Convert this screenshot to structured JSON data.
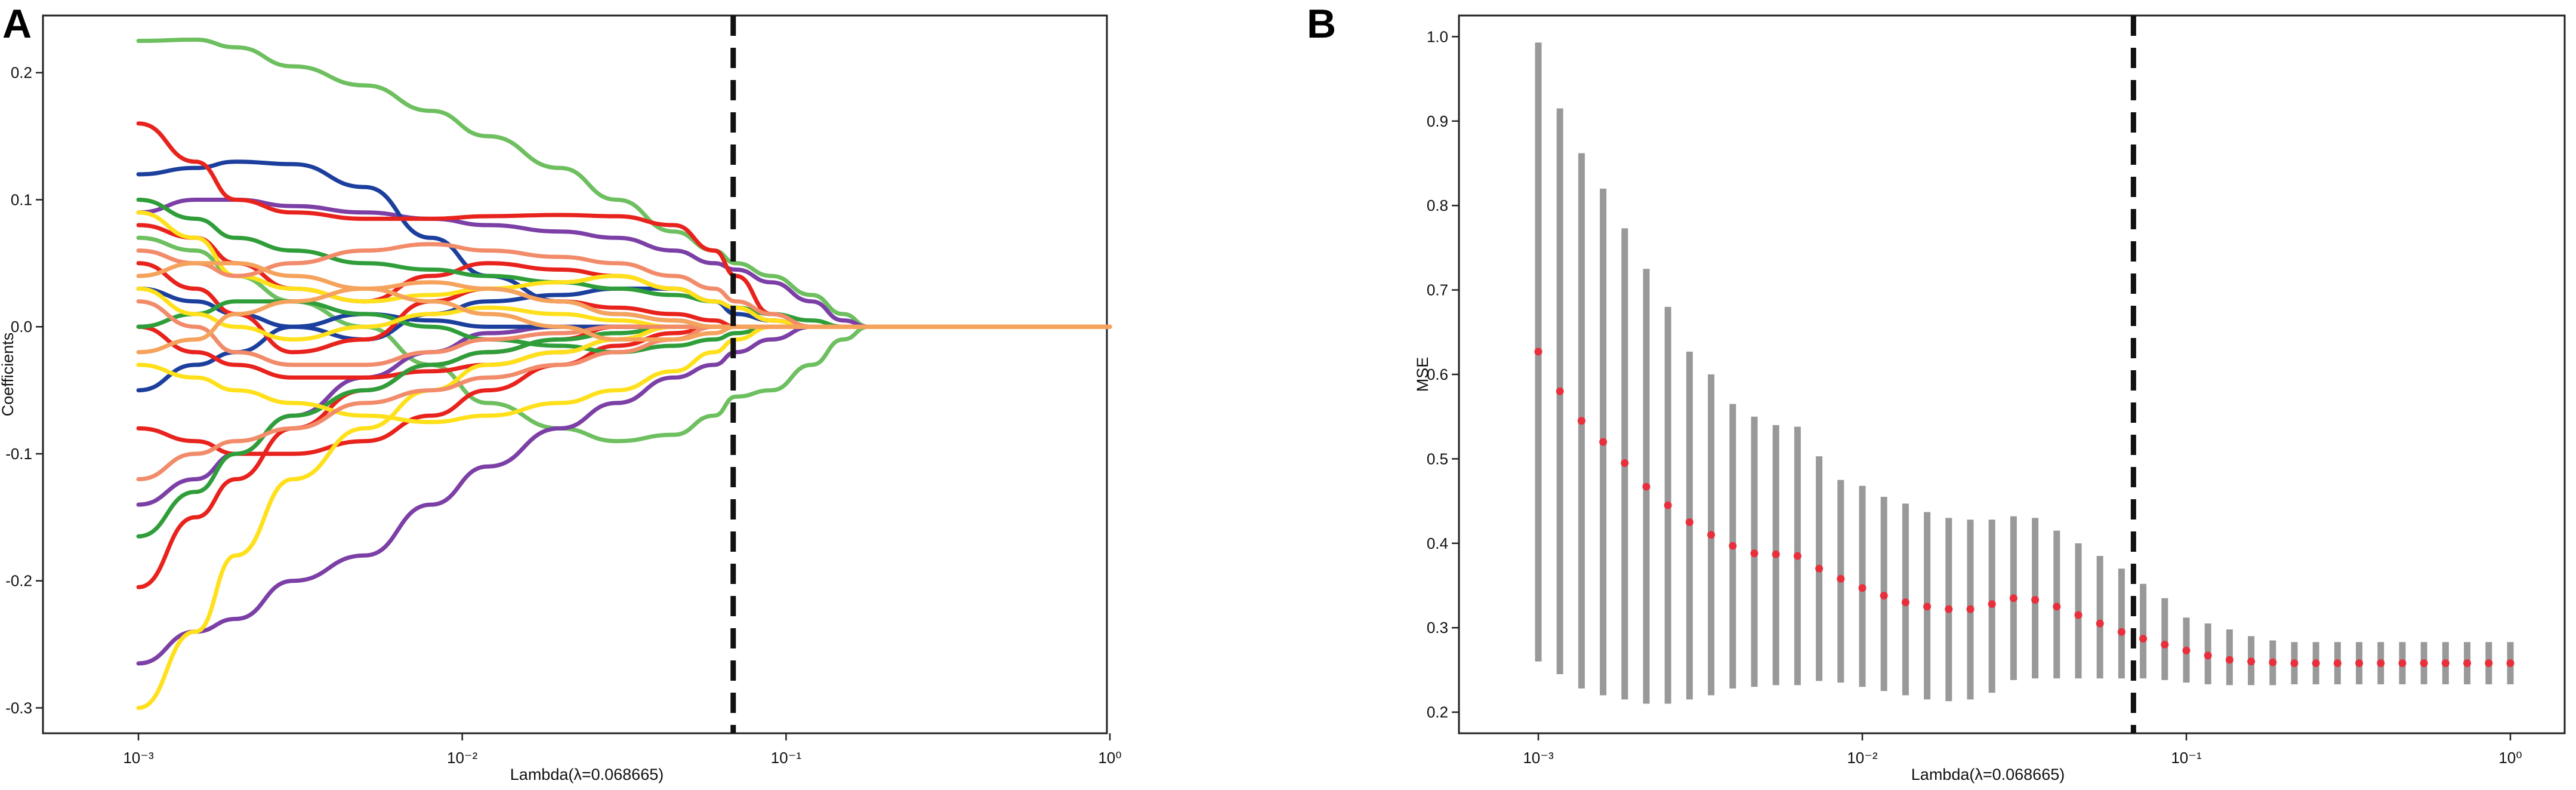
{
  "panels": {
    "a_label": "A",
    "b_label": "B"
  },
  "chart_data": [
    {
      "panel": "A",
      "type": "line",
      "xlabel": "Lambda(λ=0.068665)",
      "ylabel": "Coefficients",
      "x_scale": "log",
      "xlim": [
        0.001,
        1
      ],
      "ylim": [
        -0.32,
        0.245
      ],
      "x_ticks": [
        {
          "value": 0.001,
          "label": "10⁻³"
        },
        {
          "value": 0.01,
          "label": "10⁻²"
        },
        {
          "value": 0.1,
          "label": "10⁻¹"
        },
        {
          "value": 1,
          "label": "10⁰"
        }
      ],
      "y_ticks": [
        {
          "value": -0.3,
          "label": "-0.3"
        },
        {
          "value": -0.2,
          "label": "-0.2"
        },
        {
          "value": -0.1,
          "label": "-0.1"
        },
        {
          "value": 0.0,
          "label": "0.0"
        },
        {
          "value": 0.1,
          "label": "0.1"
        },
        {
          "value": 0.2,
          "label": "0.2"
        }
      ],
      "vline": 0.068665,
      "grid": false,
      "x": [
        0.001,
        0.0015,
        0.002,
        0.003,
        0.005,
        0.008,
        0.012,
        0.02,
        0.03,
        0.045,
        0.06,
        0.07,
        0.09,
        0.12,
        0.15,
        0.18,
        0.25,
        0.4,
        0.6,
        1.0
      ],
      "series": [
        {
          "color": "#6dbf5f",
          "values": [
            0.225,
            0.226,
            0.22,
            0.205,
            0.19,
            0.17,
            0.15,
            0.125,
            0.1,
            0.075,
            0.06,
            0.05,
            0.04,
            0.025,
            0.01,
            0,
            0,
            0,
            0,
            0
          ]
        },
        {
          "color": "#6dbf5f",
          "values": [
            0.07,
            0.06,
            0.04,
            0.02,
            0.0,
            -0.03,
            -0.06,
            -0.08,
            -0.09,
            -0.085,
            -0.07,
            -0.055,
            -0.05,
            -0.03,
            -0.01,
            0,
            0,
            0,
            0,
            0
          ]
        },
        {
          "color": "#7b3fa6",
          "values": [
            -0.265,
            -0.24,
            -0.23,
            -0.2,
            -0.18,
            -0.14,
            -0.11,
            -0.08,
            -0.06,
            -0.04,
            -0.03,
            -0.02,
            -0.01,
            0,
            0,
            0,
            0,
            0,
            0,
            0
          ]
        },
        {
          "color": "#7b3fa6",
          "values": [
            0.09,
            0.1,
            0.1,
            0.095,
            0.09,
            0.085,
            0.08,
            0.075,
            0.07,
            0.06,
            0.05,
            0.045,
            0.035,
            0.02,
            0.005,
            0,
            0,
            0,
            0,
            0
          ]
        },
        {
          "color": "#7b3fa6",
          "values": [
            -0.14,
            -0.12,
            -0.1,
            -0.07,
            -0.04,
            -0.02,
            -0.005,
            0,
            0,
            0,
            0,
            0,
            0,
            0,
            0,
            0,
            0,
            0,
            0,
            0
          ]
        },
        {
          "color": "#1c3f9e",
          "values": [
            0.12,
            0.125,
            0.13,
            0.128,
            0.11,
            0.07,
            0.04,
            0.02,
            0.01,
            0.005,
            0,
            0,
            0,
            0,
            0,
            0,
            0,
            0,
            0,
            0
          ]
        },
        {
          "color": "#1c3f9e",
          "values": [
            0.03,
            0.02,
            0.01,
            0.0,
            -0.01,
            0.01,
            0.02,
            0.025,
            0.03,
            0.03,
            0.02,
            0.01,
            0.005,
            0,
            0,
            0,
            0,
            0,
            0,
            0
          ]
        },
        {
          "color": "#1c3f9e",
          "values": [
            -0.05,
            -0.03,
            -0.02,
            0.0,
            0.01,
            0.005,
            0.0,
            0.0,
            0.0,
            0,
            0,
            0,
            0,
            0,
            0,
            0,
            0,
            0,
            0,
            0
          ]
        },
        {
          "color": "#e8221c",
          "values": [
            0.16,
            0.13,
            0.1,
            0.09,
            0.085,
            0.085,
            0.087,
            0.088,
            0.087,
            0.08,
            0.06,
            0.04,
            0.01,
            0,
            0,
            0,
            0,
            0,
            0,
            0
          ]
        },
        {
          "color": "#e8221c",
          "values": [
            0.08,
            0.07,
            0.05,
            0.03,
            0.02,
            0.04,
            0.05,
            0.045,
            0.04,
            0.03,
            0.02,
            0.015,
            0.005,
            0,
            0,
            0,
            0,
            0,
            0,
            0
          ]
        },
        {
          "color": "#e8221c",
          "values": [
            0.05,
            0.03,
            0.01,
            -0.02,
            -0.01,
            0.02,
            0.03,
            0.02,
            0.015,
            0.01,
            0.005,
            0,
            0,
            0,
            0,
            0,
            0,
            0,
            0,
            0
          ]
        },
        {
          "color": "#e8221c",
          "values": [
            -0.205,
            -0.15,
            -0.12,
            -0.08,
            -0.05,
            -0.03,
            -0.02,
            -0.01,
            0,
            0,
            0,
            0,
            0,
            0,
            0,
            0,
            0,
            0,
            0,
            0
          ]
        },
        {
          "color": "#e8221c",
          "values": [
            -0.08,
            -0.09,
            -0.1,
            -0.1,
            -0.09,
            -0.07,
            -0.05,
            -0.03,
            -0.015,
            -0.005,
            0,
            0,
            0,
            0,
            0,
            0,
            0,
            0,
            0,
            0
          ]
        },
        {
          "color": "#e8221c",
          "values": [
            0.0,
            -0.02,
            -0.03,
            -0.04,
            -0.04,
            -0.035,
            -0.03,
            -0.02,
            -0.01,
            0,
            0,
            0,
            0,
            0,
            0,
            0,
            0,
            0,
            0,
            0
          ]
        },
        {
          "color": "#2f9e3a",
          "values": [
            0.1,
            0.085,
            0.07,
            0.06,
            0.05,
            0.045,
            0.04,
            0.035,
            0.03,
            0.025,
            0.02,
            0.015,
            0.01,
            0.005,
            0,
            0,
            0,
            0,
            0,
            0
          ]
        },
        {
          "color": "#2f9e3a",
          "values": [
            -0.165,
            -0.13,
            -0.1,
            -0.07,
            -0.05,
            -0.03,
            -0.02,
            -0.01,
            -0.005,
            0,
            0,
            0,
            0,
            0,
            0,
            0,
            0,
            0,
            0,
            0
          ]
        },
        {
          "color": "#2f9e3a",
          "values": [
            0.0,
            0.01,
            0.02,
            0.02,
            0.01,
            0.0,
            -0.01,
            -0.015,
            -0.02,
            -0.015,
            -0.01,
            -0.005,
            0,
            0,
            0,
            0,
            0,
            0,
            0,
            0
          ]
        },
        {
          "color": "#ffe01a",
          "values": [
            -0.3,
            -0.24,
            -0.18,
            -0.12,
            -0.08,
            -0.05,
            -0.03,
            -0.02,
            -0.01,
            0,
            0,
            0,
            0,
            0,
            0,
            0,
            0,
            0,
            0,
            0
          ]
        },
        {
          "color": "#ffe01a",
          "values": [
            0.09,
            0.07,
            0.04,
            0.03,
            0.02,
            0.025,
            0.03,
            0.035,
            0.04,
            0.03,
            0.02,
            0.015,
            0.005,
            0,
            0,
            0,
            0,
            0,
            0,
            0
          ]
        },
        {
          "color": "#ffe01a",
          "values": [
            -0.03,
            -0.04,
            -0.05,
            -0.06,
            -0.07,
            -0.075,
            -0.07,
            -0.06,
            -0.05,
            -0.035,
            -0.02,
            -0.01,
            0,
            0,
            0,
            0,
            0,
            0,
            0,
            0
          ]
        },
        {
          "color": "#ffe01a",
          "values": [
            0.03,
            0.01,
            0.0,
            -0.01,
            0.0,
            0.01,
            0.015,
            0.01,
            0.005,
            0,
            0,
            0,
            0,
            0,
            0,
            0,
            0,
            0,
            0,
            0
          ]
        },
        {
          "color": "#f28b6a",
          "values": [
            0.06,
            0.05,
            0.04,
            0.05,
            0.06,
            0.065,
            0.06,
            0.055,
            0.05,
            0.04,
            0.03,
            0.02,
            0.01,
            0,
            0,
            0,
            0,
            0,
            0,
            0
          ]
        },
        {
          "color": "#f28b6a",
          "values": [
            -0.12,
            -0.1,
            -0.09,
            -0.08,
            -0.06,
            -0.05,
            -0.04,
            -0.03,
            -0.02,
            -0.01,
            0,
            0,
            0,
            0,
            0,
            0,
            0,
            0,
            0,
            0
          ]
        },
        {
          "color": "#f28b6a",
          "values": [
            0.02,
            0.0,
            -0.02,
            -0.03,
            -0.03,
            -0.02,
            -0.01,
            -0.005,
            0,
            0,
            0,
            0,
            0,
            0,
            0,
            0,
            0,
            0,
            0,
            0
          ]
        },
        {
          "color": "#f5a25c",
          "values": [
            -0.02,
            -0.01,
            0.01,
            0.02,
            0.03,
            0.035,
            0.03,
            0.02,
            0.01,
            0.005,
            0,
            0,
            0,
            0,
            0,
            0,
            0,
            0,
            0,
            0
          ]
        },
        {
          "color": "#f5a25c",
          "values": [
            0.04,
            0.05,
            0.05,
            0.04,
            0.03,
            0.02,
            0.01,
            0.0,
            -0.01,
            -0.01,
            -0.005,
            0,
            0,
            0,
            0,
            0,
            0,
            0,
            0,
            0
          ]
        }
      ]
    },
    {
      "panel": "B",
      "type": "scatter",
      "xlabel": "Lambda(λ=0.068665)",
      "ylabel": "MSE",
      "x_scale": "log",
      "xlim": [
        0.00065,
        1.2
      ],
      "ylim": [
        0.175,
        1.025
      ],
      "x_ticks": [
        {
          "value": 0.001,
          "label": "10⁻³"
        },
        {
          "value": 0.01,
          "label": "10⁻²"
        },
        {
          "value": 0.1,
          "label": "10⁻¹"
        },
        {
          "value": 1,
          "label": "10⁰"
        }
      ],
      "y_ticks": [
        {
          "value": 0.2,
          "label": "0.2"
        },
        {
          "value": 0.3,
          "label": "0.3"
        },
        {
          "value": 0.4,
          "label": "0.4"
        },
        {
          "value": 0.5,
          "label": "0.5"
        },
        {
          "value": 0.6,
          "label": "0.6"
        },
        {
          "value": 0.7,
          "label": "0.7"
        },
        {
          "value": 0.8,
          "label": "0.8"
        },
        {
          "value": 0.9,
          "label": "0.9"
        },
        {
          "value": 1.0,
          "label": "1.0"
        }
      ],
      "vline": 0.068665,
      "grid": false,
      "point_color": "#e8303c",
      "errorbar_color": "#999999",
      "mse": [
        0.627,
        0.58,
        0.545,
        0.52,
        0.495,
        0.467,
        0.445,
        0.425,
        0.41,
        0.397,
        0.388,
        0.387,
        0.385,
        0.37,
        0.358,
        0.347,
        0.338,
        0.33,
        0.325,
        0.322,
        0.322,
        0.328,
        0.335,
        0.333,
        0.325,
        0.315,
        0.305,
        0.295,
        0.287,
        0.28,
        0.273,
        0.267,
        0.262,
        0.26,
        0.259,
        0.258,
        0.258,
        0.258,
        0.258,
        0.258,
        0.258,
        0.258,
        0.258,
        0.258,
        0.258,
        0.258
      ],
      "upper": [
        0.993,
        0.915,
        0.862,
        0.82,
        0.773,
        0.725,
        0.68,
        0.627,
        0.6,
        0.565,
        0.55,
        0.54,
        0.538,
        0.503,
        0.475,
        0.468,
        0.455,
        0.447,
        0.437,
        0.43,
        0.428,
        0.428,
        0.432,
        0.43,
        0.415,
        0.4,
        0.385,
        0.37,
        0.352,
        0.335,
        0.312,
        0.305,
        0.298,
        0.29,
        0.285,
        0.283,
        0.283,
        0.283,
        0.283,
        0.283,
        0.283,
        0.283,
        0.283,
        0.283,
        0.283,
        0.283
      ],
      "lower": [
        0.26,
        0.245,
        0.228,
        0.22,
        0.215,
        0.21,
        0.21,
        0.215,
        0.22,
        0.228,
        0.23,
        0.232,
        0.232,
        0.237,
        0.235,
        0.23,
        0.225,
        0.22,
        0.215,
        0.213,
        0.215,
        0.223,
        0.238,
        0.24,
        0.24,
        0.24,
        0.24,
        0.24,
        0.24,
        0.238,
        0.235,
        0.233,
        0.232,
        0.232,
        0.232,
        0.233,
        0.233,
        0.233,
        0.233,
        0.233,
        0.233,
        0.233,
        0.233,
        0.233,
        0.233,
        0.233
      ]
    }
  ]
}
